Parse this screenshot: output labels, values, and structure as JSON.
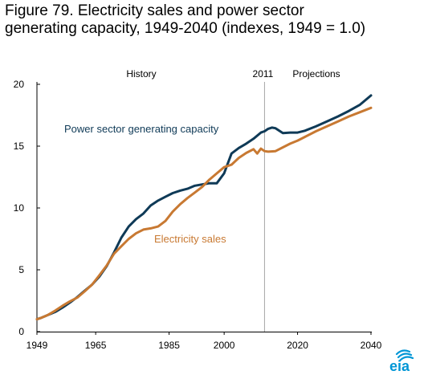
{
  "figure": {
    "title_line1": "Figure 79. Electricity sales and power sector",
    "title_line2": "generating capacity, 1949-2040 (indexes, 1949 = 1.0)"
  },
  "logo": {
    "text": "eia",
    "color": "#0096d6"
  },
  "chart_data": {
    "type": "line",
    "xlim": [
      1949,
      2040
    ],
    "ylim": [
      0,
      20
    ],
    "x_ticks": [
      "1949",
      "1965",
      "1985",
      "2000",
      "2020",
      "2040"
    ],
    "y_ticks": [
      "0",
      "5",
      "10",
      "15",
      "20"
    ],
    "grid": false,
    "divider": {
      "x": 2011,
      "label": "2011"
    },
    "section_labels": {
      "history": "History",
      "projections": "Projections"
    },
    "series": [
      {
        "name": "Power sector generating capacity",
        "color": "#0f3a57",
        "x": [
          1949,
          1950,
          1952,
          1954,
          1956,
          1958,
          1960,
          1962,
          1964,
          1966,
          1968,
          1970,
          1972,
          1974,
          1976,
          1978,
          1980,
          1982,
          1984,
          1986,
          1988,
          1990,
          1992,
          1994,
          1996,
          1998,
          2000,
          2002,
          2004,
          2006,
          2008,
          2010,
          2011,
          2012,
          2013,
          2014,
          2015,
          2016,
          2018,
          2020,
          2022,
          2025,
          2028,
          2031,
          2034,
          2037,
          2040
        ],
        "y": [
          1.0,
          1.1,
          1.35,
          1.6,
          1.95,
          2.35,
          2.8,
          3.3,
          3.8,
          4.45,
          5.3,
          6.4,
          7.6,
          8.5,
          9.1,
          9.55,
          10.2,
          10.6,
          10.9,
          11.2,
          11.4,
          11.55,
          11.8,
          11.9,
          12.0,
          12.0,
          12.8,
          14.4,
          14.85,
          15.2,
          15.6,
          16.1,
          16.2,
          16.4,
          16.5,
          16.45,
          16.25,
          16.05,
          16.1,
          16.1,
          16.25,
          16.6,
          17.0,
          17.4,
          17.85,
          18.35,
          19.1
        ]
      },
      {
        "name": "Electricity sales",
        "color": "#c87932",
        "x": [
          1949,
          1950,
          1952,
          1954,
          1956,
          1958,
          1960,
          1962,
          1964,
          1966,
          1968,
          1970,
          1972,
          1974,
          1976,
          1978,
          1980,
          1982,
          1984,
          1986,
          1988,
          1990,
          1992,
          1994,
          1996,
          1998,
          2000,
          2002,
          2004,
          2006,
          2008,
          2009,
          2010,
          2011,
          2012,
          2014,
          2016,
          2018,
          2020,
          2022,
          2025,
          2028,
          2031,
          2034,
          2037,
          2040
        ],
        "y": [
          1.0,
          1.1,
          1.35,
          1.7,
          2.1,
          2.45,
          2.75,
          3.25,
          3.8,
          4.55,
          5.35,
          6.3,
          6.9,
          7.5,
          7.95,
          8.25,
          8.35,
          8.5,
          8.95,
          9.7,
          10.3,
          10.8,
          11.25,
          11.7,
          12.3,
          12.8,
          13.3,
          13.5,
          14.05,
          14.45,
          14.75,
          14.4,
          14.8,
          14.6,
          14.55,
          14.6,
          14.9,
          15.2,
          15.45,
          15.75,
          16.2,
          16.6,
          17.0,
          17.4,
          17.75,
          18.1
        ]
      }
    ]
  }
}
